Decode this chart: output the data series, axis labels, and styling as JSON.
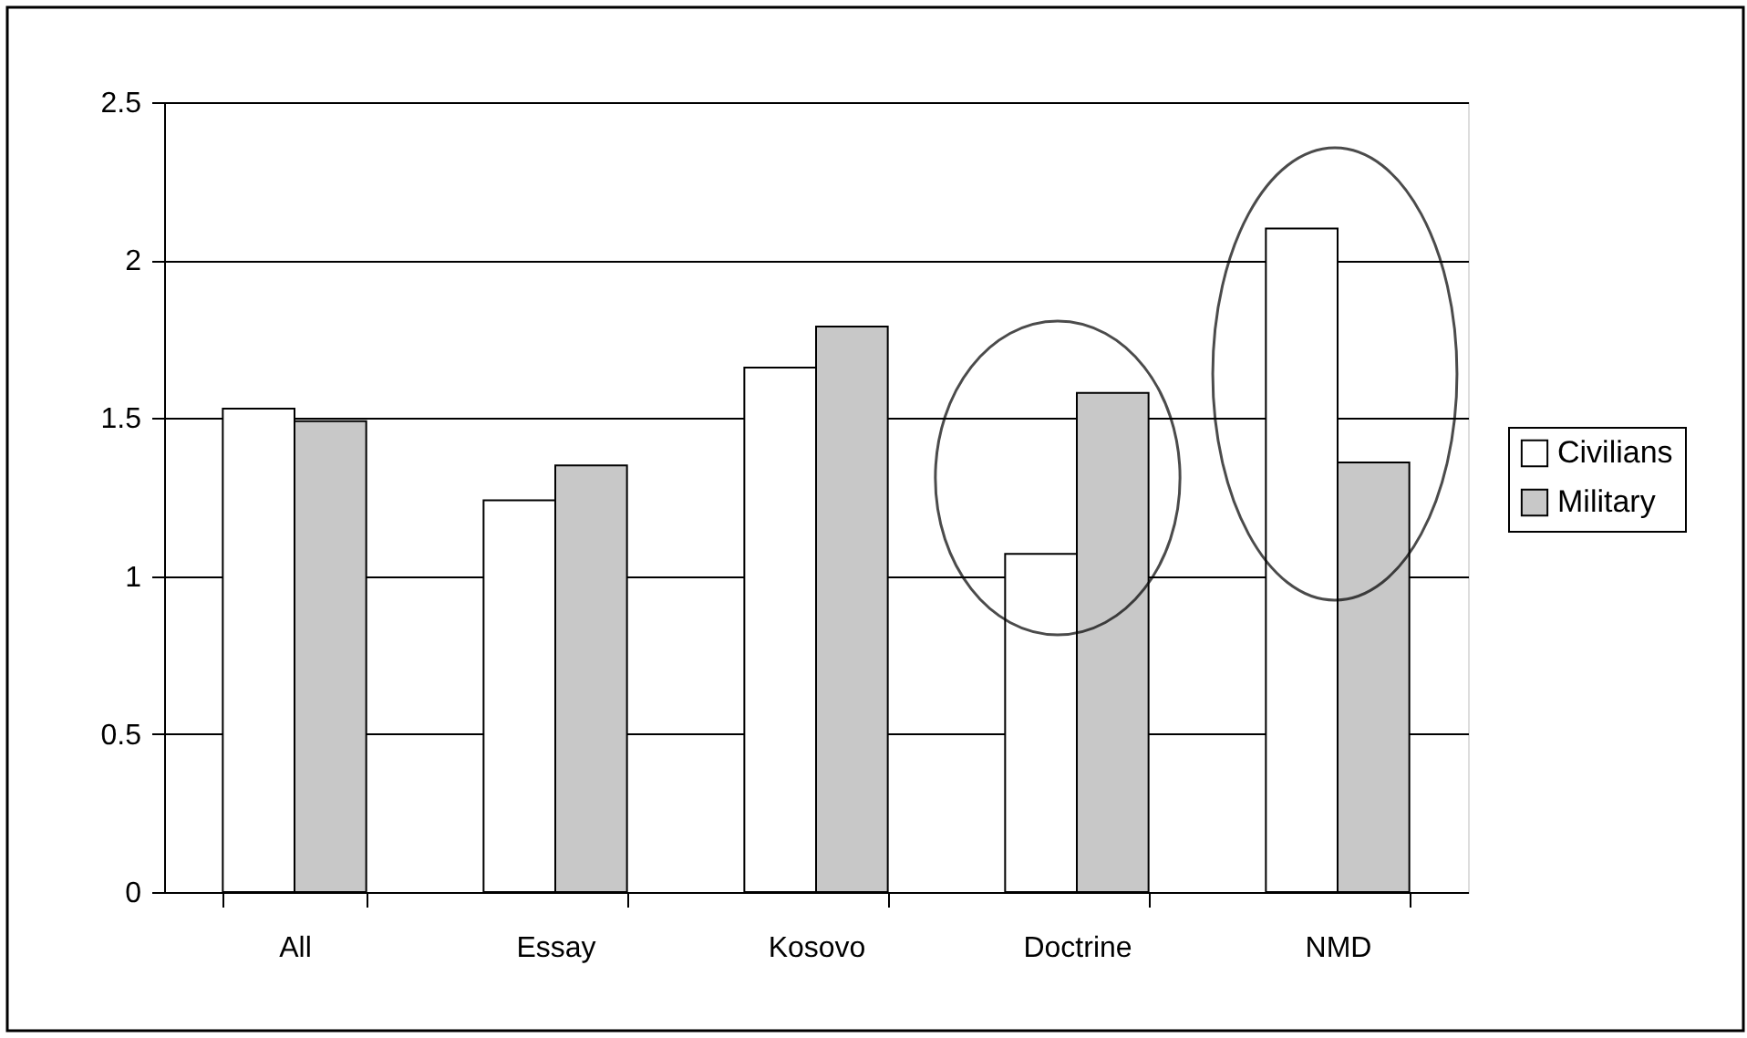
{
  "chart_data": {
    "type": "bar",
    "categories": [
      "All",
      "Essay",
      "Kosovo",
      "Doctrine",
      "NMD"
    ],
    "series": [
      {
        "name": "Civilians",
        "color": "#ffffff",
        "values": [
          1.53,
          1.24,
          1.66,
          1.07,
          2.1
        ]
      },
      {
        "name": "Military",
        "color": "#c8c8c8",
        "values": [
          1.49,
          1.35,
          1.79,
          1.58,
          1.36
        ]
      }
    ],
    "ylim": [
      0,
      2.5
    ],
    "yticks": [
      0,
      0.5,
      1,
      1.5,
      2,
      2.5
    ],
    "grid": "y",
    "legend": "right"
  }
}
